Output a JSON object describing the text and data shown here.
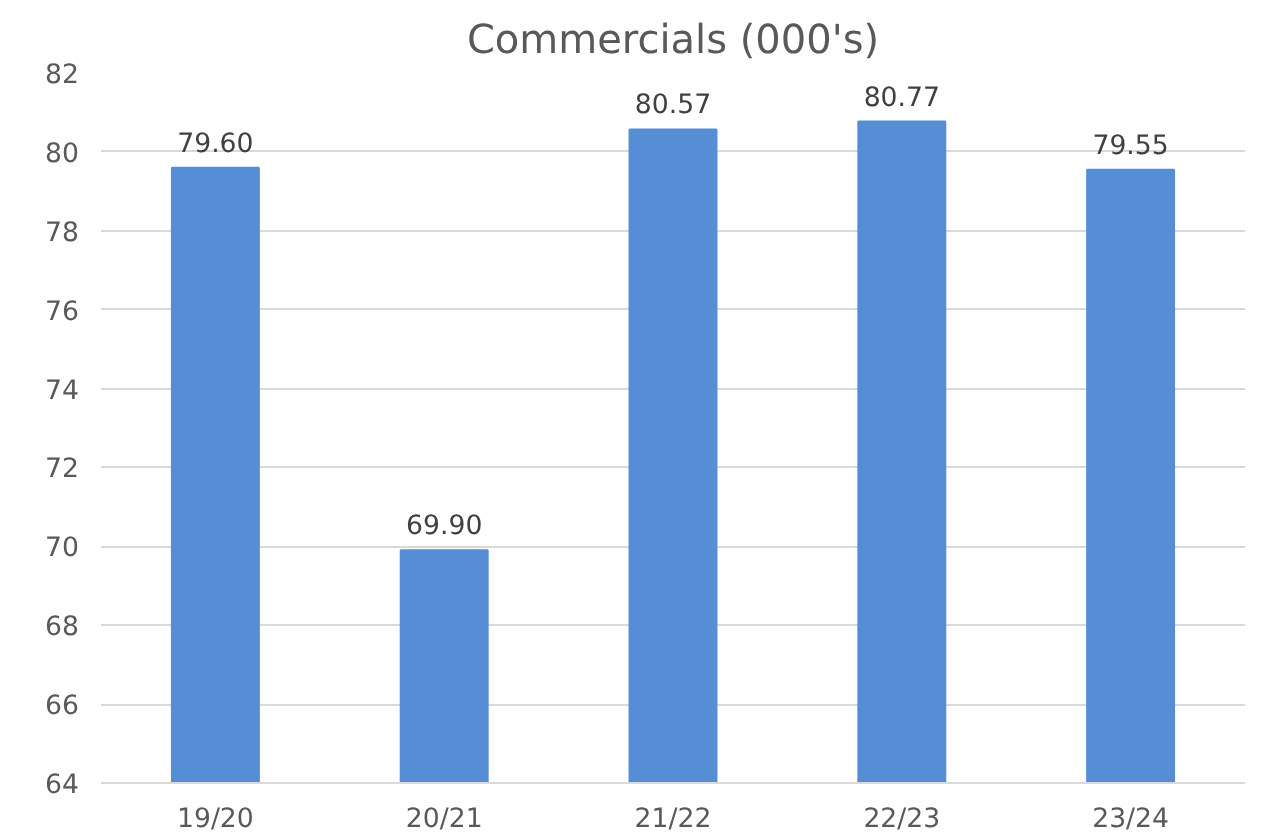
{
  "chart_data": {
    "type": "bar",
    "title": "Commercials (000's)",
    "categories": [
      "19/20",
      "20/21",
      "21/22",
      "22/23",
      "23/24"
    ],
    "values": [
      79.6,
      69.9,
      80.57,
      80.77,
      79.55
    ],
    "value_labels": [
      "79.60",
      "69.90",
      "80.57",
      "80.77",
      "79.55"
    ],
    "color": "#558ed5",
    "ylim": [
      64,
      82
    ],
    "yticks": [
      64,
      66,
      68,
      70,
      72,
      74,
      76,
      78,
      80,
      82
    ],
    "grid": "y"
  }
}
